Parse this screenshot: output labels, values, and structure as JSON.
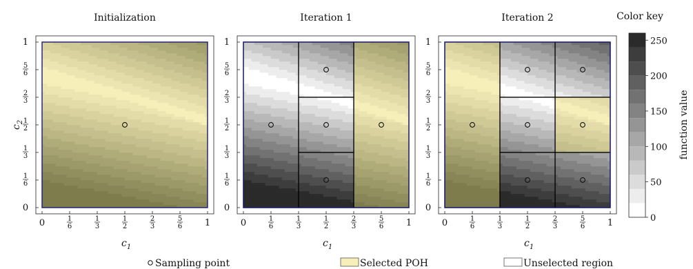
{
  "chart_data": [
    {
      "type": "heatmap",
      "title": "Initialization",
      "xlabel": "c1",
      "ylabel": "c2",
      "xlim": [
        0,
        1
      ],
      "ylim": [
        0,
        1
      ],
      "x_ticks": [
        "0",
        "1/6",
        "1/3",
        "1/2",
        "2/3",
        "5/6",
        "1"
      ],
      "y_ticks": [
        "0",
        "1/6",
        "1/3",
        "1/2",
        "2/3",
        "5/6",
        "1"
      ],
      "regions": [
        {
          "x": [
            0,
            1
          ],
          "y": [
            0,
            1
          ],
          "status": "selected"
        }
      ],
      "sampling_points": [
        [
          0.5,
          0.5
        ]
      ]
    },
    {
      "type": "heatmap",
      "title": "Iteration 1",
      "xlabel": "c1",
      "ylabel": "",
      "xlim": [
        0,
        1
      ],
      "ylim": [
        0,
        1
      ],
      "x_ticks": [
        "0",
        "1/6",
        "1/3",
        "1/2",
        "2/3",
        "5/6",
        "1"
      ],
      "y_ticks": [
        "0",
        "1/6",
        "1/3",
        "1/2",
        "2/3",
        "5/6",
        "1"
      ],
      "regions": [
        {
          "x": [
            0,
            0.3333
          ],
          "y": [
            0,
            1
          ],
          "status": "unselected"
        },
        {
          "x": [
            0.3333,
            0.6667
          ],
          "y": [
            0.6667,
            1
          ],
          "status": "unselected"
        },
        {
          "x": [
            0.3333,
            0.6667
          ],
          "y": [
            0.3333,
            0.6667
          ],
          "status": "unselected"
        },
        {
          "x": [
            0.3333,
            0.6667
          ],
          "y": [
            0,
            0.3333
          ],
          "status": "unselected"
        },
        {
          "x": [
            0.6667,
            1
          ],
          "y": [
            0,
            1
          ],
          "status": "selected"
        }
      ],
      "sampling_points": [
        [
          0.1667,
          0.5
        ],
        [
          0.5,
          0.8333
        ],
        [
          0.5,
          0.5
        ],
        [
          0.5,
          0.1667
        ],
        [
          0.8333,
          0.5
        ]
      ]
    },
    {
      "type": "heatmap",
      "title": "Iteration 2",
      "xlabel": "c1",
      "ylabel": "",
      "xlim": [
        0,
        1
      ],
      "ylim": [
        0,
        1
      ],
      "x_ticks": [
        "0",
        "1/6",
        "1/3",
        "1/2",
        "2/3",
        "5/6",
        "1"
      ],
      "y_ticks": [
        "0",
        "1/6",
        "1/3",
        "1/2",
        "2/3",
        "5/6",
        "1"
      ],
      "regions": [
        {
          "x": [
            0,
            0.3333
          ],
          "y": [
            0,
            1
          ],
          "status": "selected"
        },
        {
          "x": [
            0.3333,
            0.6667
          ],
          "y": [
            0.6667,
            1
          ],
          "status": "unselected"
        },
        {
          "x": [
            0.6667,
            1
          ],
          "y": [
            0.6667,
            1
          ],
          "status": "unselected"
        },
        {
          "x": [
            0.3333,
            0.6667
          ],
          "y": [
            0.3333,
            0.6667
          ],
          "status": "unselected"
        },
        {
          "x": [
            0.6667,
            1
          ],
          "y": [
            0.3333,
            0.6667
          ],
          "status": "selected"
        },
        {
          "x": [
            0.3333,
            0.6667
          ],
          "y": [
            0,
            0.3333
          ],
          "status": "unselected"
        },
        {
          "x": [
            0.6667,
            1
          ],
          "y": [
            0,
            0.3333
          ],
          "status": "unselected"
        }
      ],
      "sampling_points": [
        [
          0.1667,
          0.5
        ],
        [
          0.5,
          0.8333
        ],
        [
          0.8333,
          0.8333
        ],
        [
          0.5,
          0.5
        ],
        [
          0.8333,
          0.5
        ],
        [
          0.5,
          0.1667
        ],
        [
          0.8333,
          0.1667
        ]
      ]
    }
  ],
  "colorbar": {
    "title": "Color key",
    "label": "function value",
    "min": 0,
    "max": 260,
    "ticks": [
      "0",
      "50",
      "100",
      "150",
      "200",
      "250"
    ],
    "tick_values": [
      0,
      50,
      100,
      150,
      200,
      250
    ],
    "levels": 13
  },
  "legend": {
    "items": [
      {
        "symbol": "circle",
        "label": "Sampling point"
      },
      {
        "symbol": "selected-swatch",
        "label": "Selected POH"
      },
      {
        "symbol": "unselected-swatch",
        "label": "Unselected region"
      }
    ],
    "placement": "bottom"
  },
  "colors": {
    "frame": "#1a1a6e",
    "selected_light": "#f7efba",
    "selected_dark": "#7e7c4d",
    "gray_light": "#ffffff",
    "gray_dark": "#2b2b2b",
    "region_border": "#000000"
  }
}
